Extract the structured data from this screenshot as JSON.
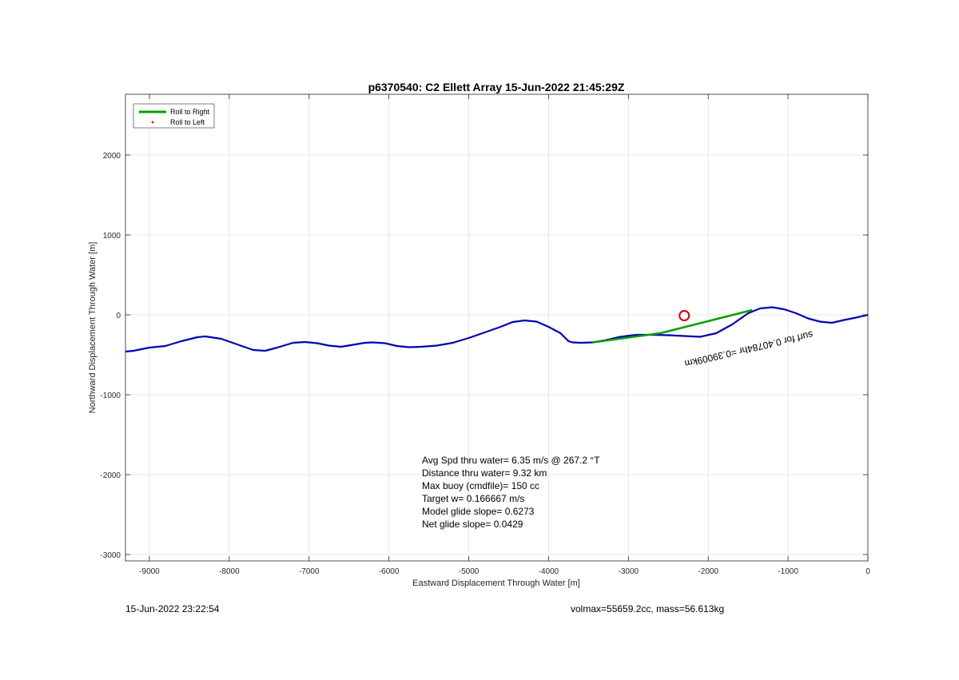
{
  "chart_data": {
    "type": "line",
    "title": "p6370540: C2 Ellett Array 15-Jun-2022 21:45:29Z",
    "xlabel": "Eastward Displacement Through Water [m]",
    "ylabel": "Northward Displacement Through Water [m]",
    "xlim": [
      -9300,
      0
    ],
    "ylim": [
      -3080,
      2760
    ],
    "xticks": [
      -9000,
      -8000,
      -7000,
      -6000,
      -5000,
      -4000,
      -3000,
      -2000,
      -1000,
      0
    ],
    "yticks": [
      -3000,
      -2000,
      -1000,
      0,
      1000,
      2000
    ],
    "xtick_labels": [
      "-9000",
      "-8000",
      "-7000",
      "-6000",
      "-5000",
      "-4000",
      "-3000",
      "-2000",
      "-1000",
      "0"
    ],
    "ytick_labels": [
      "-3000",
      "-2000",
      "-1000",
      "0",
      "1000",
      "2000"
    ],
    "grid": true,
    "legend": {
      "placement": "top-left",
      "entries": [
        {
          "label": "Roll to Right",
          "color": "#00a000",
          "style": "line"
        },
        {
          "label": "Roll to Left",
          "color": "#e00000",
          "style": "dot"
        }
      ]
    },
    "series": [
      {
        "color": "#0000b4",
        "x": [
          -9300,
          -9200,
          -9000,
          -8800,
          -8600,
          -8400,
          -8300,
          -8100,
          -7900,
          -7700,
          -7550,
          -7400,
          -7200,
          -7050,
          -6900,
          -6750,
          -6600,
          -6450,
          -6300,
          -6200,
          -6050,
          -5900,
          -5750,
          -5600,
          -5400,
          -5200,
          -5000,
          -4800,
          -4600,
          -4450,
          -4300,
          -4150,
          -4000,
          -3850,
          -3750,
          -3700,
          -3600,
          -3450,
          -3300,
          -3100,
          -2900,
          -2700,
          -2500,
          -2300,
          -2100,
          -1900,
          -1700,
          -1500,
          -1350,
          -1200,
          -1050,
          -900,
          -750,
          -600,
          -450,
          -300,
          -150,
          0
        ],
        "y": [
          -460,
          -450,
          -410,
          -390,
          -330,
          -280,
          -270,
          -300,
          -370,
          -440,
          -450,
          -410,
          -350,
          -340,
          -355,
          -385,
          -400,
          -375,
          -350,
          -345,
          -355,
          -390,
          -405,
          -400,
          -385,
          -350,
          -290,
          -220,
          -150,
          -90,
          -70,
          -85,
          -150,
          -230,
          -330,
          -345,
          -350,
          -345,
          -320,
          -275,
          -250,
          -250,
          -255,
          -265,
          -275,
          -230,
          -120,
          20,
          80,
          95,
          70,
          20,
          -45,
          -85,
          -100,
          -65,
          -35,
          0
        ]
      },
      {
        "color": "#00a000",
        "x": [
          -3450,
          -2600,
          -1450
        ],
        "y": [
          -345,
          -230,
          60
        ]
      }
    ],
    "markers": [
      {
        "shape": "circle",
        "color": "#d00000",
        "x": -2300,
        "y": -10
      }
    ],
    "annotations": [
      "Avg Spd thru water=  6.35 m/s @ 267.2 °T",
      "Distance thru water=  9.32 km",
      "Max buoy (cmdfile)= 150 cc",
      "Target w= 0.166667 m/s",
      "Model glide slope= 0.6273",
      "Net glide slope= 0.0429"
    ],
    "rotated_label": "surf for 0.40784hr =0.39009km"
  },
  "footer": {
    "left": "15-Jun-2022 23:22:54",
    "right": "volmax=55659.2cc, mass=56.613kg"
  }
}
